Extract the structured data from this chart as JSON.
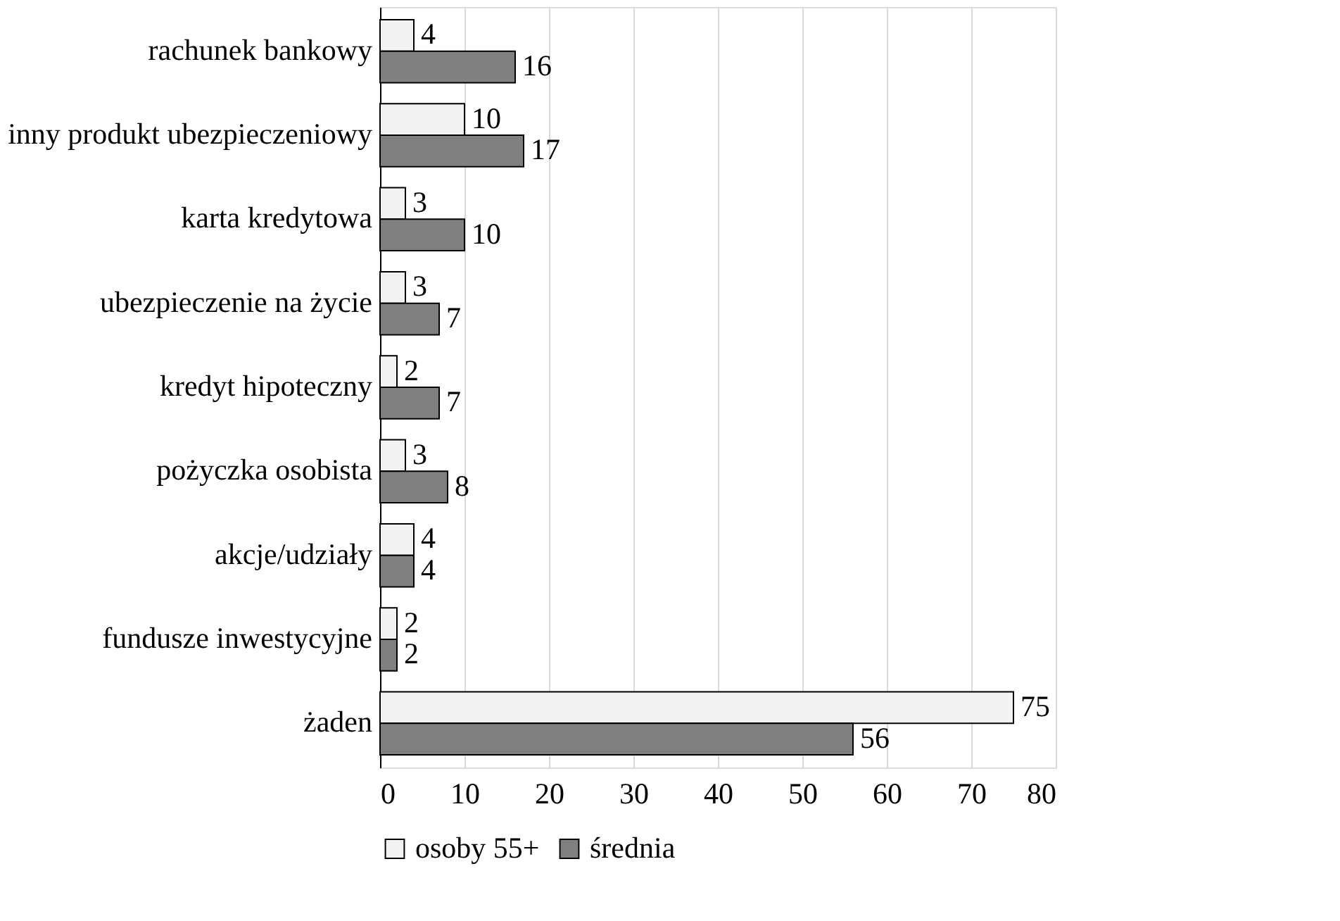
{
  "chart_data": {
    "type": "bar",
    "orientation": "horizontal",
    "categories": [
      "rachunek bankowy",
      "inny produkt ubezpieczeniowy",
      "karta kredytowa",
      "ubezpieczenie na życie",
      "kredyt hipoteczny",
      "pożyczka osobista",
      "akcje/udziały",
      "fundusze inwestycyjne",
      "żaden"
    ],
    "series": [
      {
        "name": "osoby 55+",
        "color": "#f2f2f2",
        "values": [
          4,
          10,
          3,
          3,
          2,
          3,
          4,
          2,
          75
        ]
      },
      {
        "name": "średnia",
        "color": "#808080",
        "values": [
          16,
          17,
          10,
          7,
          7,
          8,
          4,
          2,
          56
        ]
      }
    ],
    "xlim": [
      0,
      80
    ],
    "xticks": [
      0,
      10,
      20,
      30,
      40,
      50,
      60,
      70,
      80
    ],
    "grid": "x",
    "legend": "bottom",
    "data_labels": true
  }
}
